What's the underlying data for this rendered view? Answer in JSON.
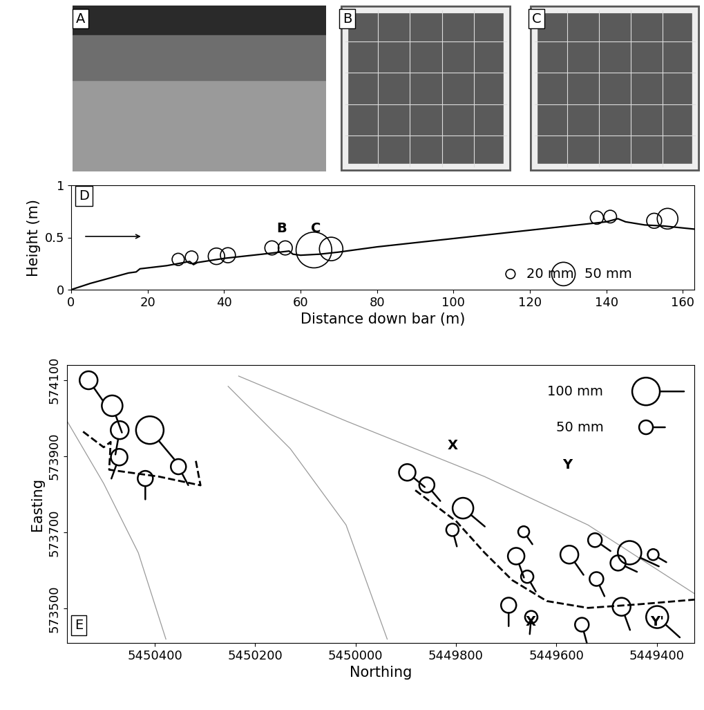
{
  "chart_data": [
    {
      "type": "image",
      "label": "A"
    },
    {
      "type": "image",
      "label": "B"
    },
    {
      "type": "image",
      "label": "C"
    },
    {
      "type": "line",
      "label": "D",
      "xlabel": "Distance down bar (m)",
      "ylabel": "Height (m)",
      "x": [
        0,
        5,
        10,
        15,
        17,
        18,
        25,
        31,
        32,
        33,
        40,
        50,
        57,
        58,
        60,
        65,
        70,
        80,
        90,
        100,
        110,
        120,
        130,
        140,
        143,
        145,
        150,
        155,
        163
      ],
      "values": [
        0,
        0.06,
        0.11,
        0.16,
        0.17,
        0.2,
        0.23,
        0.27,
        0.24,
        0.26,
        0.3,
        0.34,
        0.37,
        0.34,
        0.33,
        0.34,
        0.36,
        0.41,
        0.45,
        0.49,
        0.53,
        0.57,
        0.61,
        0.65,
        0.68,
        0.65,
        0.62,
        0.61,
        0.58
      ],
      "color": "#000000",
      "xlim": [
        0,
        163
      ],
      "ylim": [
        0,
        1
      ],
      "xticks": [
        0,
        20,
        40,
        60,
        80,
        100,
        120,
        140,
        160
      ],
      "yticks": [
        0,
        0.5,
        1
      ],
      "clasts": {
        "x": [
          28,
          31.5,
          38,
          41,
          52.5,
          56,
          63.5,
          68,
          137.5,
          141,
          152.5,
          156
        ],
        "y": [
          0.29,
          0.31,
          0.32,
          0.33,
          0.4,
          0.4,
          0.38,
          0.39,
          0.69,
          0.7,
          0.66,
          0.68
        ],
        "size": [
          26,
          27,
          35,
          32,
          30,
          30,
          76,
          50,
          28,
          27,
          32,
          44
        ]
      },
      "annotations": [
        {
          "text": "B",
          "x": 55,
          "y": 0.52
        },
        {
          "text": "C",
          "x": 64,
          "y": 0.52
        }
      ],
      "size_legend": {
        "labels": [
          "20 mm",
          "50 mm"
        ],
        "size": [
          20,
          50
        ]
      }
    },
    {
      "type": "map",
      "label": "E",
      "xlabel": "Northing",
      "ylabel": "Easting",
      "xlim": [
        5450575,
        5449325
      ],
      "ylim": [
        573410,
        574140
      ],
      "xticks": [
        5450400,
        5450200,
        5450000,
        5449800,
        5449600,
        5449400
      ],
      "yticks": [
        574100,
        573900,
        573700,
        573500
      ],
      "clasts": {
        "x": [
          5450532,
          5450485,
          5450470,
          5450471,
          5450410,
          5450419,
          5450353,
          5449897,
          5449858,
          5449786,
          5449807,
          5449665,
          5449680,
          5449658,
          5449695,
          5449650,
          5449574,
          5449523,
          5449520,
          5449549,
          5449477,
          5449454,
          5449470,
          5449407,
          5449399
        ],
        "y": [
          574100,
          574033,
          573969,
          573898,
          573969,
          573842,
          573873,
          573858,
          573825,
          573764,
          573707,
          573702,
          573638,
          573584,
          573509,
          573478,
          573642,
          573680,
          573578,
          573458,
          573620,
          573647,
          573505,
          573642,
          573478
        ],
        "size": [
          65,
          75,
          65,
          60,
          100,
          55,
          55,
          60,
          55,
          75,
          45,
          40,
          60,
          45,
          55,
          45,
          65,
          50,
          50,
          50,
          55,
          85,
          65,
          40,
          80
        ],
        "orientation": [
          -55,
          -70,
          -100,
          -110,
          -50,
          -90,
          -62,
          -40,
          -50,
          -40,
          -75,
          -55,
          -70,
          -60,
          -90,
          -95,
          -55,
          -35,
          -65,
          -75,
          -25,
          -25,
          -70,
          -30,
          -42
        ]
      },
      "boundaries": [
        [
          [
            5450543,
            573965
          ],
          [
            5450502,
            573924
          ],
          [
            5450488,
            573938
          ],
          [
            5450491,
            573865
          ],
          [
            5450392,
            573847
          ],
          [
            5450309,
            573824
          ],
          [
            5450319,
            573893
          ]
        ],
        [
          [
            5449881,
            573811
          ],
          [
            5449799,
            573729
          ],
          [
            5449743,
            573647
          ],
          [
            5449688,
            573575
          ],
          [
            5449619,
            573520
          ],
          [
            5449537,
            573502
          ],
          [
            5449440,
            573511
          ],
          [
            5449323,
            573524
          ]
        ]
      ],
      "contours": [
        [
          [
            5450233,
            574111
          ],
          [
            5450019,
            573993
          ],
          [
            5449743,
            573847
          ],
          [
            5449537,
            573720
          ],
          [
            5449323,
            573538
          ]
        ],
        [
          [
            5450575,
            573993
          ],
          [
            5450502,
            573829
          ],
          [
            5450433,
            573647
          ],
          [
            5450378,
            573420
          ]
        ],
        [
          [
            5450254,
            574084
          ],
          [
            5450130,
            573920
          ],
          [
            5450019,
            573720
          ],
          [
            5449937,
            573420
          ]
        ]
      ],
      "annotations": [
        {
          "text": "X",
          "x": 5449806,
          "y": 573929
        },
        {
          "text": "X'",
          "x": 5449647,
          "y": 573465
        },
        {
          "text": "Y",
          "x": 5449578,
          "y": 573878
        },
        {
          "text": "Y'",
          "x": 5449399,
          "y": 573465
        }
      ],
      "size_legend": {
        "labels": [
          "100 mm",
          "50 mm"
        ],
        "size": [
          100,
          50
        ]
      }
    }
  ]
}
